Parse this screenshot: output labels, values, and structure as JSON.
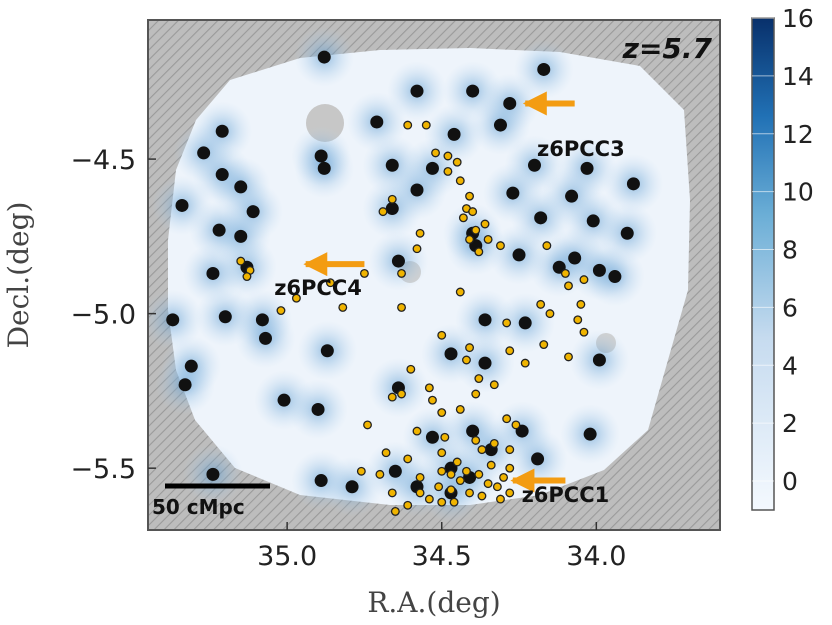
{
  "chart_data": {
    "type": "scatter",
    "title": "",
    "xlabel": "R.A.(deg)",
    "ylabel": "Decl.(deg)",
    "xlim": [
      35.45,
      33.6
    ],
    "ylim": [
      -5.7,
      -4.05
    ],
    "xticks": [
      {
        "value": 35.0,
        "label": "35.0"
      },
      {
        "value": 34.5,
        "label": "34.5"
      },
      {
        "value": 34.0,
        "label": "34.0"
      }
    ],
    "yticks": [
      {
        "value": -4.5,
        "label": "−4.5"
      },
      {
        "value": -5.0,
        "label": "−5.0"
      },
      {
        "value": -5.5,
        "label": "−5.5"
      }
    ],
    "redshift_label": "z=5.7",
    "scale_bar_label": "50 cMpc",
    "colorbar": {
      "min": -1,
      "max": 16,
      "ticks": [
        {
          "value": 0,
          "label": "0"
        },
        {
          "value": 2,
          "label": "2"
        },
        {
          "value": 4,
          "label": "4"
        },
        {
          "value": 6,
          "label": "6"
        },
        {
          "value": 8,
          "label": "8"
        },
        {
          "value": 10,
          "label": "10"
        },
        {
          "value": 12,
          "label": "12"
        },
        {
          "value": 14,
          "label": "14"
        },
        {
          "value": 16,
          "label": "16"
        }
      ],
      "color_low": "#eef5fc",
      "color_high": "#08306b"
    },
    "colors": {
      "background_hatch": "#bdbdbd",
      "field": "#eef4fb",
      "black_points": "#111111",
      "yellow_points": "#f0b400",
      "arrow": "#f39c12"
    },
    "annotations": [
      {
        "label": "z6PCC3",
        "x": 34.05,
        "y": -4.49,
        "arrow_from": [
          34.07,
          -4.32
        ],
        "arrow_to": [
          34.23,
          -4.32
        ]
      },
      {
        "label": "z6PCC4",
        "x": 34.9,
        "y": -4.94,
        "arrow_from": [
          34.75,
          -4.84
        ],
        "arrow_to": [
          34.94,
          -4.84
        ]
      },
      {
        "label": "z6PCC1",
        "x": 34.1,
        "y": -5.61,
        "arrow_from": [
          34.1,
          -5.54
        ],
        "arrow_to": [
          34.27,
          -5.54
        ]
      }
    ],
    "series": [
      {
        "kind": "black",
        "points": [
          [
            34.88,
            -4.17
          ],
          [
            34.17,
            -4.21
          ],
          [
            34.58,
            -4.28
          ],
          [
            34.4,
            -4.28
          ],
          [
            34.28,
            -4.32
          ],
          [
            35.21,
            -4.41
          ],
          [
            34.71,
            -4.38
          ],
          [
            34.31,
            -4.39
          ],
          [
            34.46,
            -4.42
          ],
          [
            35.27,
            -4.48
          ],
          [
            34.89,
            -4.49
          ],
          [
            34.88,
            -4.53
          ],
          [
            34.66,
            -4.52
          ],
          [
            35.21,
            -4.55
          ],
          [
            34.53,
            -4.53
          ],
          [
            34.2,
            -4.52
          ],
          [
            34.03,
            -4.53
          ],
          [
            35.15,
            -4.59
          ],
          [
            34.58,
            -4.6
          ],
          [
            33.88,
            -4.58
          ],
          [
            34.27,
            -4.61
          ],
          [
            34.08,
            -4.62
          ],
          [
            35.11,
            -4.67
          ],
          [
            34.66,
            -4.66
          ],
          [
            35.34,
            -4.65
          ],
          [
            34.18,
            -4.69
          ],
          [
            34.01,
            -4.7
          ],
          [
            35.22,
            -4.73
          ],
          [
            35.15,
            -4.75
          ],
          [
            34.4,
            -4.74
          ],
          [
            33.9,
            -4.74
          ],
          [
            34.39,
            -4.78
          ],
          [
            34.25,
            -4.81
          ],
          [
            34.07,
            -4.82
          ],
          [
            35.13,
            -4.85
          ],
          [
            34.64,
            -4.83
          ],
          [
            35.24,
            -4.87
          ],
          [
            34.12,
            -4.85
          ],
          [
            33.99,
            -4.86
          ],
          [
            33.94,
            -4.88
          ],
          [
            35.2,
            -5.01
          ],
          [
            34.36,
            -5.02
          ],
          [
            35.37,
            -5.02
          ],
          [
            35.08,
            -5.02
          ],
          [
            34.23,
            -5.03
          ],
          [
            35.07,
            -5.08
          ],
          [
            34.87,
            -5.12
          ],
          [
            34.47,
            -5.13
          ],
          [
            35.31,
            -5.17
          ],
          [
            33.99,
            -5.15
          ],
          [
            34.36,
            -5.16
          ],
          [
            35.33,
            -5.23
          ],
          [
            34.64,
            -5.24
          ],
          [
            35.01,
            -5.28
          ],
          [
            34.9,
            -5.31
          ],
          [
            34.4,
            -5.38
          ],
          [
            34.24,
            -5.38
          ],
          [
            34.53,
            -5.4
          ],
          [
            34.02,
            -5.39
          ],
          [
            34.34,
            -5.44
          ],
          [
            34.19,
            -5.47
          ],
          [
            34.47,
            -5.5
          ],
          [
            34.65,
            -5.51
          ],
          [
            35.24,
            -5.52
          ],
          [
            34.41,
            -5.53
          ],
          [
            34.89,
            -5.54
          ],
          [
            34.79,
            -5.56
          ],
          [
            34.58,
            -5.56
          ],
          [
            34.47,
            -5.58
          ]
        ]
      },
      {
        "kind": "yellow",
        "points": [
          [
            34.61,
            -4.39
          ],
          [
            34.55,
            -4.39
          ],
          [
            34.52,
            -4.48
          ],
          [
            34.48,
            -4.49
          ],
          [
            34.45,
            -4.51
          ],
          [
            34.48,
            -4.54
          ],
          [
            34.44,
            -4.57
          ],
          [
            34.41,
            -4.62
          ],
          [
            34.66,
            -4.63
          ],
          [
            34.42,
            -4.66
          ],
          [
            34.4,
            -4.67
          ],
          [
            34.43,
            -4.69
          ],
          [
            34.69,
            -4.67
          ],
          [
            34.39,
            -4.73
          ],
          [
            34.36,
            -4.71
          ],
          [
            34.41,
            -4.76
          ],
          [
            34.35,
            -4.76
          ],
          [
            34.57,
            -4.74
          ],
          [
            34.38,
            -4.8
          ],
          [
            34.31,
            -4.78
          ],
          [
            34.16,
            -4.78
          ],
          [
            34.58,
            -4.79
          ],
          [
            35.15,
            -4.83
          ],
          [
            35.12,
            -4.86
          ],
          [
            35.13,
            -4.88
          ],
          [
            34.63,
            -4.87
          ],
          [
            34.86,
            -4.9
          ],
          [
            34.75,
            -4.87
          ],
          [
            34.1,
            -4.87
          ],
          [
            34.04,
            -4.89
          ],
          [
            34.09,
            -4.91
          ],
          [
            34.44,
            -4.93
          ],
          [
            34.97,
            -4.95
          ],
          [
            34.05,
            -4.97
          ],
          [
            34.18,
            -4.97
          ],
          [
            34.82,
            -4.98
          ],
          [
            34.63,
            -4.98
          ],
          [
            35.02,
            -4.99
          ],
          [
            34.15,
            -5.0
          ],
          [
            34.06,
            -5.02
          ],
          [
            34.29,
            -5.03
          ],
          [
            34.5,
            -5.07
          ],
          [
            34.04,
            -5.06
          ],
          [
            34.41,
            -5.11
          ],
          [
            34.17,
            -5.1
          ],
          [
            34.28,
            -5.12
          ],
          [
            34.09,
            -5.14
          ],
          [
            34.42,
            -5.15
          ],
          [
            34.23,
            -5.16
          ],
          [
            34.6,
            -5.18
          ],
          [
            34.38,
            -5.21
          ],
          [
            34.33,
            -5.23
          ],
          [
            34.54,
            -5.24
          ],
          [
            34.63,
            -5.26
          ],
          [
            34.66,
            -5.27
          ],
          [
            34.39,
            -5.26
          ],
          [
            34.53,
            -5.28
          ],
          [
            34.5,
            -5.32
          ],
          [
            34.44,
            -5.31
          ],
          [
            34.29,
            -5.34
          ],
          [
            34.26,
            -5.36
          ],
          [
            34.74,
            -5.36
          ],
          [
            34.58,
            -5.38
          ],
          [
            34.49,
            -5.4
          ],
          [
            34.39,
            -5.41
          ],
          [
            34.33,
            -5.42
          ],
          [
            34.28,
            -5.44
          ],
          [
            34.37,
            -5.44
          ],
          [
            34.5,
            -5.45
          ],
          [
            34.68,
            -5.45
          ],
          [
            34.61,
            -5.47
          ],
          [
            34.45,
            -5.48
          ],
          [
            34.34,
            -5.49
          ],
          [
            34.28,
            -5.5
          ],
          [
            34.5,
            -5.51
          ],
          [
            34.47,
            -5.52
          ],
          [
            34.42,
            -5.51
          ],
          [
            34.38,
            -5.52
          ],
          [
            34.3,
            -5.53
          ],
          [
            34.76,
            -5.51
          ],
          [
            34.7,
            -5.52
          ],
          [
            34.57,
            -5.53
          ],
          [
            34.44,
            -5.54
          ],
          [
            34.35,
            -5.55
          ],
          [
            34.32,
            -5.56
          ],
          [
            34.51,
            -5.56
          ],
          [
            34.47,
            -5.57
          ],
          [
            34.41,
            -5.58
          ],
          [
            34.37,
            -5.59
          ],
          [
            34.57,
            -5.58
          ],
          [
            34.66,
            -5.58
          ],
          [
            34.54,
            -5.6
          ],
          [
            34.5,
            -5.61
          ],
          [
            34.46,
            -5.61
          ],
          [
            34.31,
            -5.6
          ],
          [
            34.28,
            -5.58
          ],
          [
            34.61,
            -5.62
          ],
          [
            34.65,
            -5.64
          ]
        ]
      }
    ]
  }
}
